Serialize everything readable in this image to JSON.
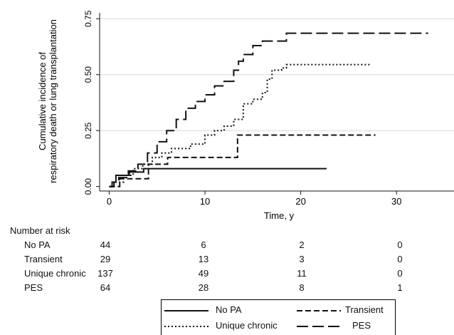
{
  "chart_data": {
    "type": "line",
    "step": true,
    "title": "",
    "xlabel": "Time, y",
    "ylabel": "Cumulative incidence of respiratory death or lung transplantation",
    "xlim": [
      -1,
      36
    ],
    "ylim": [
      -0.02,
      0.77
    ],
    "xticks": [
      0,
      10,
      20,
      30
    ],
    "xtick_labels": [
      "0",
      "10",
      "20",
      "30"
    ],
    "yticks": [
      0,
      0.25,
      0.5,
      0.75
    ],
    "ytick_labels": [
      "0.00",
      "0.25",
      "0.50",
      "0.75"
    ],
    "grid": "horizontal",
    "legend_position": "bottom",
    "series": [
      {
        "name": "No PA",
        "dash": "solid",
        "points": [
          [
            0,
            0
          ],
          [
            0.3,
            0.02
          ],
          [
            0.7,
            0.05
          ],
          [
            2,
            0.05
          ],
          [
            2.1,
            0.065
          ],
          [
            3.5,
            0.065
          ],
          [
            3.6,
            0.08
          ],
          [
            22.7,
            0.08
          ]
        ]
      },
      {
        "name": "Transient",
        "dash": "dashed",
        "points": [
          [
            0,
            0
          ],
          [
            1,
            0
          ],
          [
            1.1,
            0.035
          ],
          [
            4,
            0.035
          ],
          [
            4.1,
            0.1
          ],
          [
            6,
            0.1
          ],
          [
            6.1,
            0.13
          ],
          [
            13.3,
            0.13
          ],
          [
            13.4,
            0.23
          ],
          [
            27.8,
            0.23
          ]
        ]
      },
      {
        "name": "Unique chronic",
        "dash": "dotted",
        "points": [
          [
            0,
            0
          ],
          [
            0.5,
            0.02
          ],
          [
            1.5,
            0.05
          ],
          [
            2.5,
            0.08
          ],
          [
            3.5,
            0.1
          ],
          [
            4.5,
            0.13
          ],
          [
            5.5,
            0.15
          ],
          [
            6.5,
            0.17
          ],
          [
            8.5,
            0.19
          ],
          [
            10,
            0.23
          ],
          [
            11,
            0.25
          ],
          [
            12,
            0.27
          ],
          [
            13,
            0.3
          ],
          [
            14,
            0.37
          ],
          [
            15,
            0.39
          ],
          [
            16,
            0.42
          ],
          [
            16.5,
            0.48
          ],
          [
            17,
            0.52
          ],
          [
            18,
            0.53
          ],
          [
            18.5,
            0.545
          ],
          [
            27.2,
            0.545
          ]
        ]
      },
      {
        "name": "PES",
        "dash": "longdash",
        "points": [
          [
            0,
            0
          ],
          [
            0.5,
            0.02
          ],
          [
            1,
            0.04
          ],
          [
            2,
            0.07
          ],
          [
            3,
            0.1
          ],
          [
            4,
            0.15
          ],
          [
            5,
            0.2
          ],
          [
            6,
            0.25
          ],
          [
            7,
            0.3
          ],
          [
            8,
            0.35
          ],
          [
            9,
            0.38
          ],
          [
            10,
            0.41
          ],
          [
            11,
            0.45
          ],
          [
            12,
            0.47
          ],
          [
            13,
            0.52
          ],
          [
            13.5,
            0.56
          ],
          [
            14,
            0.59
          ],
          [
            15,
            0.63
          ],
          [
            16,
            0.65
          ],
          [
            18.5,
            0.685
          ],
          [
            33.3,
            0.685
          ]
        ]
      }
    ]
  },
  "risk_table": {
    "title": "Number at risk",
    "time_points": [
      0,
      10,
      20,
      30
    ],
    "rows": [
      {
        "label": "No PA",
        "values": [
          "44",
          "6",
          "2",
          "0"
        ]
      },
      {
        "label": "Transient",
        "values": [
          "29",
          "13",
          "3",
          "0"
        ]
      },
      {
        "label": "Unique chronic",
        "values": [
          "137",
          "49",
          "11",
          "0"
        ]
      },
      {
        "label": "PES",
        "values": [
          "64",
          "28",
          "8",
          "1"
        ]
      }
    ]
  },
  "legend": {
    "items": [
      {
        "label": "No PA",
        "dash": "solid"
      },
      {
        "label": "Transient",
        "dash": "dashed"
      },
      {
        "label": "Unique chronic",
        "dash": "dotted"
      },
      {
        "label": "PES",
        "dash": "longdash"
      }
    ]
  },
  "colors": {
    "line": "#111111",
    "grid": "#d8d8d8",
    "background": "#ffffff"
  }
}
